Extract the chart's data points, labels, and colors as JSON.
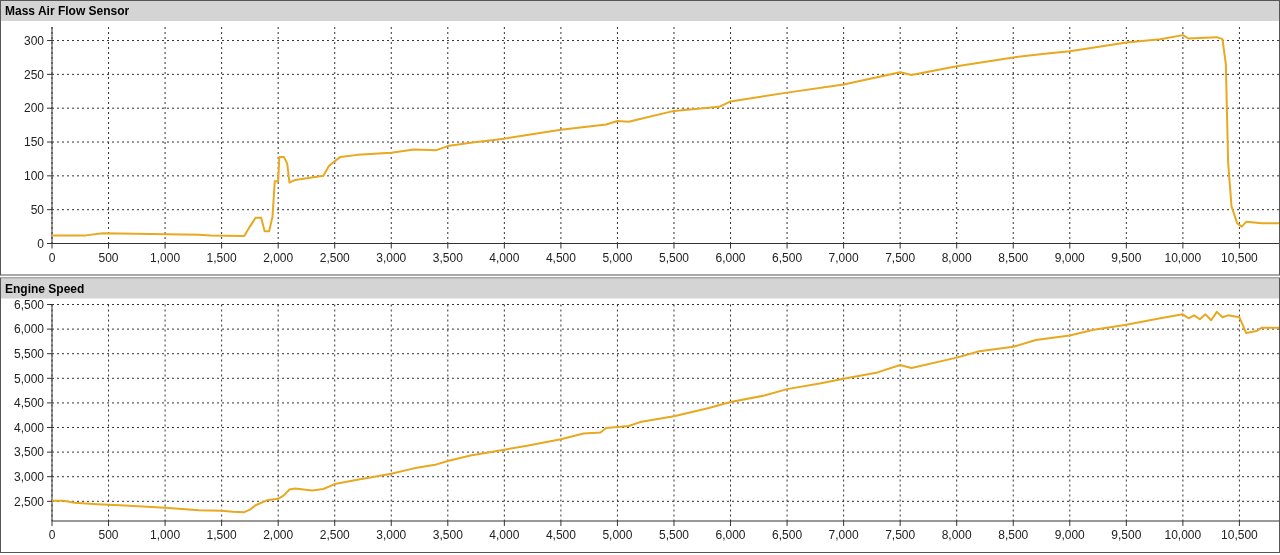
{
  "chart_data": [
    {
      "type": "line",
      "title": "Mass Air Flow Sensor",
      "color": "#e8a820",
      "grid": true,
      "marker": "none",
      "line_style": "solid",
      "x": [
        0,
        300,
        450,
        1300,
        1400,
        1700,
        1750,
        1800,
        1850,
        1880,
        1920,
        1950,
        1970,
        2000,
        2010,
        2050,
        2080,
        2100,
        2150,
        2400,
        2450,
        2550,
        2700,
        3000,
        3200,
        3400,
        3500,
        3700,
        4000,
        4300,
        4500,
        4900,
        5000,
        5100,
        5200,
        5500,
        5900,
        6000,
        6500,
        7000,
        7500,
        7600,
        8000,
        8500,
        8800,
        9000,
        9500,
        9800,
        10000,
        10050,
        10300,
        10350,
        10380,
        10400,
        10430,
        10480,
        10520,
        10560,
        10700,
        10850
      ],
      "values": [
        12,
        12,
        15,
        13,
        12,
        11,
        25,
        38,
        38,
        18,
        18,
        40,
        92,
        92,
        128,
        128,
        118,
        90,
        94,
        100,
        115,
        128,
        131,
        134,
        139,
        138,
        144,
        149,
        155,
        163,
        168,
        176,
        181,
        180,
        184,
        196,
        202,
        210,
        223,
        235,
        253,
        249,
        262,
        275,
        281,
        284,
        297,
        302,
        308,
        303,
        305,
        302,
        265,
        120,
        55,
        30,
        25,
        32,
        30,
        30
      ],
      "xlim": [
        0,
        10850
      ],
      "ylim": [
        0,
        320
      ],
      "xticks": [
        {
          "value": 0,
          "label": "0"
        },
        {
          "value": 500,
          "label": "500"
        },
        {
          "value": 1000,
          "label": "1,000"
        },
        {
          "value": 1500,
          "label": "1,500"
        },
        {
          "value": 2000,
          "label": "2,000"
        },
        {
          "value": 2500,
          "label": "2,500"
        },
        {
          "value": 3000,
          "label": "3,000"
        },
        {
          "value": 3500,
          "label": "3,500"
        },
        {
          "value": 4000,
          "label": "4,000"
        },
        {
          "value": 4500,
          "label": "4,500"
        },
        {
          "value": 5000,
          "label": "5,000"
        },
        {
          "value": 5500,
          "label": "5,500"
        },
        {
          "value": 6000,
          "label": "6,000"
        },
        {
          "value": 6500,
          "label": "6,500"
        },
        {
          "value": 7000,
          "label": "7,000"
        },
        {
          "value": 7500,
          "label": "7,500"
        },
        {
          "value": 8000,
          "label": "8,000"
        },
        {
          "value": 8500,
          "label": "8,500"
        },
        {
          "value": 9000,
          "label": "9,000"
        },
        {
          "value": 9500,
          "label": "9,500"
        },
        {
          "value": 10000,
          "label": "10,000"
        },
        {
          "value": 10500,
          "label": "10,500"
        }
      ],
      "yticks": [
        0,
        50,
        100,
        150,
        200,
        250,
        300
      ]
    },
    {
      "type": "line",
      "title": "Engine Speed",
      "color": "#e8a820",
      "grid": true,
      "marker": "none",
      "line_style": "solid",
      "x": [
        0,
        100,
        200,
        400,
        600,
        1000,
        1300,
        1500,
        1600,
        1700,
        1750,
        1800,
        1900,
        2000,
        2050,
        2100,
        2150,
        2300,
        2400,
        2500,
        2700,
        3000,
        3200,
        3400,
        3500,
        3700,
        4000,
        4200,
        4500,
        4700,
        4850,
        4900,
        5100,
        5200,
        5500,
        5800,
        6000,
        6300,
        6500,
        6800,
        7000,
        7300,
        7500,
        7600,
        8000,
        8200,
        8500,
        8700,
        9000,
        9200,
        9500,
        9800,
        10000,
        10050,
        10100,
        10150,
        10200,
        10250,
        10300,
        10350,
        10400,
        10500,
        10560,
        10650,
        10700,
        10850
      ],
      "values": [
        2510,
        2510,
        2470,
        2440,
        2420,
        2370,
        2320,
        2310,
        2290,
        2280,
        2330,
        2420,
        2520,
        2550,
        2620,
        2740,
        2760,
        2720,
        2750,
        2850,
        2940,
        3060,
        3170,
        3250,
        3320,
        3430,
        3550,
        3630,
        3760,
        3880,
        3900,
        3990,
        4030,
        4110,
        4230,
        4390,
        4520,
        4650,
        4780,
        4900,
        4990,
        5120,
        5270,
        5210,
        5420,
        5550,
        5640,
        5780,
        5870,
        5980,
        6090,
        6220,
        6300,
        6220,
        6280,
        6200,
        6300,
        6180,
        6350,
        6240,
        6280,
        6240,
        5920,
        5960,
        6030,
        6030
      ],
      "xlim": [
        0,
        10850
      ],
      "ylim": [
        2100,
        6500
      ],
      "xticks": [
        {
          "value": 0,
          "label": "0"
        },
        {
          "value": 500,
          "label": "500"
        },
        {
          "value": 1000,
          "label": "1,000"
        },
        {
          "value": 1500,
          "label": "1,500"
        },
        {
          "value": 2000,
          "label": "2,000"
        },
        {
          "value": 2500,
          "label": "2,500"
        },
        {
          "value": 3000,
          "label": "3,000"
        },
        {
          "value": 3500,
          "label": "3,500"
        },
        {
          "value": 4000,
          "label": "4,000"
        },
        {
          "value": 4500,
          "label": "4,500"
        },
        {
          "value": 5000,
          "label": "5,000"
        },
        {
          "value": 5500,
          "label": "5,500"
        },
        {
          "value": 6000,
          "label": "6,000"
        },
        {
          "value": 6500,
          "label": "6,500"
        },
        {
          "value": 7000,
          "label": "7,000"
        },
        {
          "value": 7500,
          "label": "7,500"
        },
        {
          "value": 8000,
          "label": "8,000"
        },
        {
          "value": 8500,
          "label": "8,500"
        },
        {
          "value": 9000,
          "label": "9,000"
        },
        {
          "value": 9500,
          "label": "9,500"
        },
        {
          "value": 10000,
          "label": "10,000"
        },
        {
          "value": 10500,
          "label": "10,500"
        }
      ],
      "yticks": [
        {
          "value": 2500,
          "label": "2,500"
        },
        {
          "value": 3000,
          "label": "3,000"
        },
        {
          "value": 3500,
          "label": "3,500"
        },
        {
          "value": 4000,
          "label": "4,000"
        },
        {
          "value": 4500,
          "label": "4,500"
        },
        {
          "value": 5000,
          "label": "5,000"
        },
        {
          "value": 5500,
          "label": "5,500"
        },
        {
          "value": 6000,
          "label": "6,000"
        },
        {
          "value": 6500,
          "label": "6,500"
        }
      ]
    }
  ]
}
